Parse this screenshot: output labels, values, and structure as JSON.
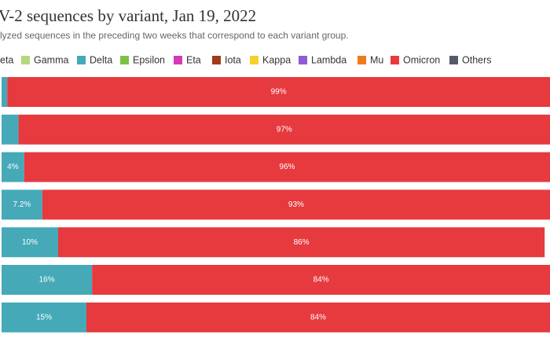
{
  "chart_data": {
    "type": "stacked-bar-horizontal",
    "title": "V-2 sequences by variant, Jan 19, 2022",
    "subtitle": "lyzed sequences in the preceding two weeks that correspond to each variant group.",
    "xlim": [
      0,
      100
    ],
    "series": [
      {
        "name": "eta",
        "color": "#2f6ea8"
      },
      {
        "name": "Gamma",
        "color": "#b6d77b"
      },
      {
        "name": "Delta",
        "color": "#45a9b8",
        "values": [
          1,
          3,
          4,
          7.2,
          10,
          16,
          15
        ],
        "value_labels": [
          null,
          null,
          "4%",
          "7.2%",
          "10%",
          "16%",
          "15%"
        ]
      },
      {
        "name": "Epsilon",
        "color": "#7cc143"
      },
      {
        "name": "Eta",
        "color": "#d23ab7"
      },
      {
        "name": "Iota",
        "color": "#a23a18"
      },
      {
        "name": "Kappa",
        "color": "#f4d22a"
      },
      {
        "name": "Lambda",
        "color": "#8d5cd4"
      },
      {
        "name": "Mu",
        "color": "#ee7c1c"
      },
      {
        "name": "Omicron",
        "color": "#e63a3f",
        "values": [
          99,
          97,
          96,
          93,
          86,
          84,
          84
        ],
        "value_labels": [
          "99%",
          "97%",
          "96%",
          "93%",
          "86%",
          "84%",
          "84%"
        ]
      },
      {
        "name": "Others",
        "color": "#555b66"
      }
    ]
  }
}
